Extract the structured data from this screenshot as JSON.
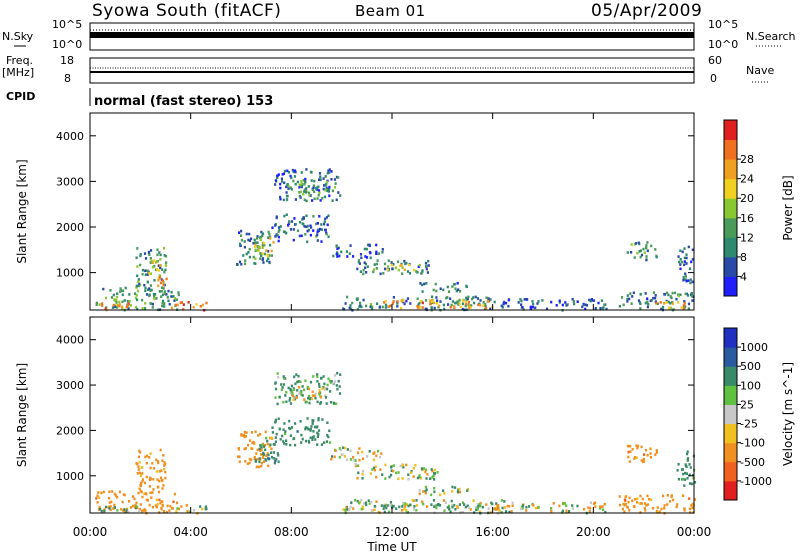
{
  "header": {
    "station": "Syowa South (fitACF)",
    "beam": "Beam 01",
    "date": "05/Apr/2009"
  },
  "top_panels": {
    "nsky_label": "N.Sky",
    "nsky_ticks": [
      "10^5",
      "10^0"
    ],
    "nsearch_label": "N.Search",
    "nsearch_ticks": [
      "10^5",
      "10^0"
    ],
    "freq_label": "Freq.",
    "freq_unit": "[MHz]",
    "freq_ticks": [
      "18",
      "8"
    ],
    "nave_label": "Nave",
    "nave_ticks": [
      "60",
      "0"
    ],
    "cpid_label": "CPID",
    "cpid_text": "normal (fast stereo) 153"
  },
  "chart_data": [
    {
      "type": "heatmap",
      "title": "Power",
      "ylabel": "Slant Range [km]",
      "xlabel": "Time UT",
      "ylim": [
        180,
        4500
      ],
      "yticks": [
        1000,
        2000,
        3000,
        4000
      ],
      "xticks": [
        "00:00",
        "04:00",
        "08:00",
        "12:00",
        "16:00",
        "20:00",
        "00:00"
      ],
      "colorbar": {
        "label": "Power [dB]",
        "ticks": [
          "4",
          "8",
          "12",
          "16",
          "20",
          "24",
          "28"
        ],
        "colors": [
          "#1f1fff",
          "#2a4aa8",
          "#2e8a6e",
          "#4a9a5a",
          "#8ac832",
          "#f0d020",
          "#f0a020",
          "#f07020",
          "#e02020"
        ]
      },
      "regions": [
        {
          "t0": 0.2,
          "t1": 3.5,
          "r0": 200,
          "r1": 700,
          "v": 12
        },
        {
          "t0": 0.3,
          "t1": 1.5,
          "r0": 200,
          "r1": 380,
          "v": 26
        },
        {
          "t0": 1.8,
          "t1": 3.0,
          "r0": 600,
          "r1": 1600,
          "v": 12
        },
        {
          "t0": 2.3,
          "t1": 2.8,
          "r0": 850,
          "r1": 1350,
          "v": 20
        },
        {
          "t0": 2.6,
          "t1": 3.0,
          "r0": 700,
          "r1": 950,
          "v": 27
        },
        {
          "t0": 3.2,
          "t1": 4.6,
          "r0": 200,
          "r1": 380,
          "v": 24
        },
        {
          "t0": 5.8,
          "t1": 7.2,
          "r0": 1200,
          "r1": 2000,
          "v": 10
        },
        {
          "t0": 6.5,
          "t1": 7.3,
          "r0": 1300,
          "r1": 1800,
          "v": 18
        },
        {
          "t0": 7.2,
          "t1": 9.5,
          "r0": 1700,
          "r1": 2300,
          "v": 8
        },
        {
          "t0": 7.3,
          "t1": 9.9,
          "r0": 2600,
          "r1": 3300,
          "v": 8
        },
        {
          "t0": 7.8,
          "t1": 9.7,
          "r0": 2700,
          "r1": 3050,
          "v": 13
        },
        {
          "t0": 9.5,
          "t1": 11.6,
          "r0": 1350,
          "r1": 1650,
          "v": 7
        },
        {
          "t0": 10.5,
          "t1": 13.5,
          "r0": 1000,
          "r1": 1300,
          "v": 10
        },
        {
          "t0": 11.2,
          "t1": 13.2,
          "r0": 1050,
          "r1": 1200,
          "v": 18
        },
        {
          "t0": 10.0,
          "t1": 16.5,
          "r0": 200,
          "r1": 500,
          "v": 10
        },
        {
          "t0": 11.5,
          "t1": 16.0,
          "r0": 250,
          "r1": 420,
          "v": 23
        },
        {
          "t0": 13.0,
          "t1": 15.0,
          "r0": 600,
          "r1": 800,
          "v": 10
        },
        {
          "t0": 16.0,
          "t1": 20.5,
          "r0": 200,
          "r1": 450,
          "v": 7
        },
        {
          "t0": 21.0,
          "t1": 24.0,
          "r0": 200,
          "r1": 600,
          "v": 10
        },
        {
          "t0": 22.3,
          "t1": 23.6,
          "r0": 220,
          "r1": 380,
          "v": 24
        },
        {
          "t0": 21.3,
          "t1": 22.5,
          "r0": 1300,
          "r1": 1700,
          "v": 12
        },
        {
          "t0": 23.3,
          "t1": 24.0,
          "r0": 800,
          "r1": 1600,
          "v": 8
        }
      ]
    },
    {
      "type": "heatmap",
      "title": "Velocity",
      "ylabel": "Slant Range [km]",
      "xlabel": "Time UT",
      "ylim": [
        180,
        4500
      ],
      "yticks": [
        1000,
        2000,
        3000,
        4000
      ],
      "xticks": [
        "00:00",
        "04:00",
        "08:00",
        "12:00",
        "16:00",
        "20:00",
        "00:00"
      ],
      "colorbar": {
        "label": "Velocity [m s^-1]",
        "ticks": [
          "1000",
          "500",
          "100",
          "25",
          "-25",
          "-100",
          "-500",
          "-1000"
        ],
        "colors": [
          "#2030c0",
          "#2a5aa0",
          "#3a8a6a",
          "#60c040",
          "#c8c8c8",
          "#f0c020",
          "#f09020",
          "#f06020",
          "#e02020"
        ]
      },
      "regions": [
        {
          "t0": 0.2,
          "t1": 3.5,
          "r0": 200,
          "r1": 700,
          "v": -300
        },
        {
          "t0": 0.3,
          "t1": 2.0,
          "r0": 200,
          "r1": 350,
          "v": 200
        },
        {
          "t0": 1.8,
          "t1": 3.0,
          "r0": 700,
          "r1": 1600,
          "v": -300
        },
        {
          "t0": 3.2,
          "t1": 4.6,
          "r0": 200,
          "r1": 380,
          "v": 50
        },
        {
          "t0": 5.8,
          "t1": 7.2,
          "r0": 1200,
          "r1": 2000,
          "v": -300
        },
        {
          "t0": 6.5,
          "t1": 7.5,
          "r0": 1300,
          "r1": 1900,
          "v": 300
        },
        {
          "t0": 7.2,
          "t1": 9.5,
          "r0": 1700,
          "r1": 2300,
          "v": 300
        },
        {
          "t0": 7.3,
          "t1": 9.9,
          "r0": 2600,
          "r1": 3300,
          "v": 200
        },
        {
          "t0": 8.0,
          "t1": 9.5,
          "r0": 2700,
          "r1": 3000,
          "v": -60
        },
        {
          "t0": 9.5,
          "t1": 11.6,
          "r0": 1350,
          "r1": 1650,
          "v": 0
        },
        {
          "t0": 10.5,
          "t1": 13.8,
          "r0": 950,
          "r1": 1300,
          "v": 0
        },
        {
          "t0": 10.0,
          "t1": 16.5,
          "r0": 200,
          "r1": 500,
          "v": 0
        },
        {
          "t0": 11.5,
          "t1": 16.0,
          "r0": 300,
          "r1": 420,
          "v": 200
        },
        {
          "t0": 13.0,
          "t1": 15.0,
          "r0": 600,
          "r1": 800,
          "v": 60
        },
        {
          "t0": 16.0,
          "t1": 20.5,
          "r0": 200,
          "r1": 450,
          "v": -60
        },
        {
          "t0": 21.0,
          "t1": 24.0,
          "r0": 200,
          "r1": 600,
          "v": -300
        },
        {
          "t0": 21.3,
          "t1": 22.5,
          "r0": 1300,
          "r1": 1700,
          "v": -300
        },
        {
          "t0": 23.3,
          "t1": 24.0,
          "r0": 800,
          "r1": 1600,
          "v": 300
        }
      ]
    }
  ]
}
